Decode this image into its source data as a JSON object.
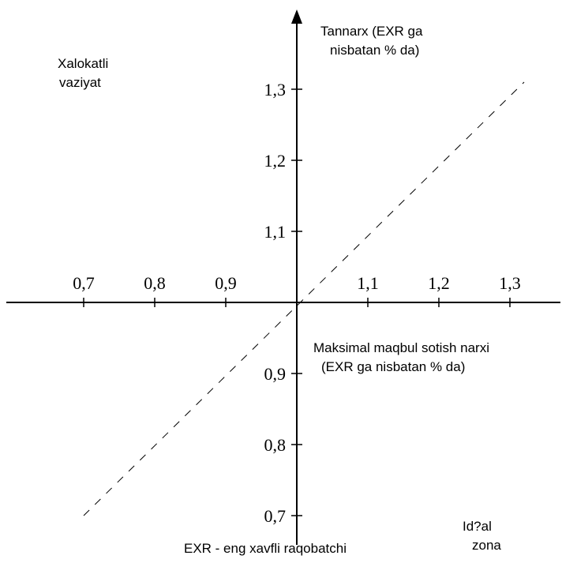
{
  "y_axis_label": {
    "line1": "Tannarx (EXR ga",
    "line2": "nisbatan % da)"
  },
  "x_axis_label": {
    "line1": "Maksimal maqbul sotish narxi",
    "line2": "(EXR ga nisbatan % da)"
  },
  "corner_top_left": {
    "line1": "Xalokatli",
    "line2": "vaziyat"
  },
  "corner_bottom_right": {
    "line1": "Id?al",
    "line2": "zona"
  },
  "footnote": "EXR - eng xavfli raqobatchi",
  "x_ticks": [
    {
      "label": "0,7",
      "value": 0.7
    },
    {
      "label": "0,8",
      "value": 0.8
    },
    {
      "label": "0,9",
      "value": 0.9
    },
    {
      "label": "1,1",
      "value": 1.1
    },
    {
      "label": "1,2",
      "value": 1.2
    },
    {
      "label": "1,3",
      "value": 1.3
    }
  ],
  "y_ticks": [
    {
      "label": "1,3",
      "value": 1.3
    },
    {
      "label": "1,2",
      "value": 1.2
    },
    {
      "label": "1,1",
      "value": 1.1
    },
    {
      "label": "0,9",
      "value": 0.9
    },
    {
      "label": "0,8",
      "value": 0.8
    },
    {
      "label": "0,7",
      "value": 0.7
    }
  ],
  "diagonal": {
    "from": [
      0.7,
      0.7
    ],
    "to": [
      1.32,
      1.31
    ]
  }
}
